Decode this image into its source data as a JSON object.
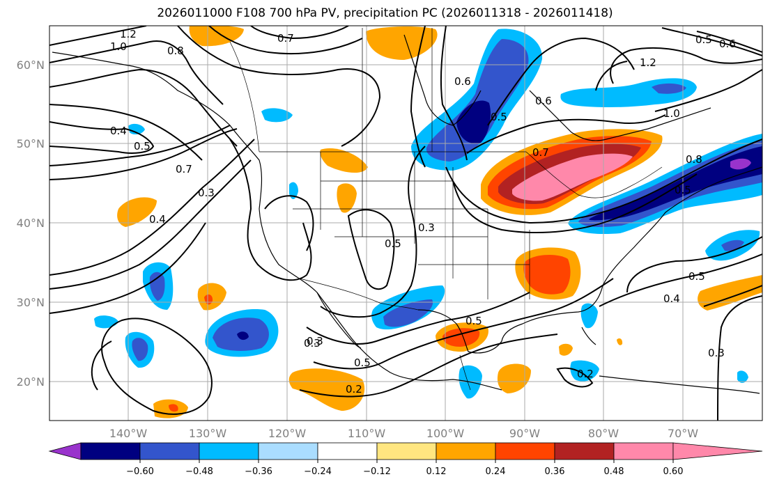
{
  "title": "2026011000 F108 700 hPa PV, precipitation PC (2026011318 - 2026011418)",
  "map": {
    "lat_labels": [
      "60°N",
      "50°N",
      "40°N",
      "30°N",
      "20°N"
    ],
    "lon_labels": [
      "140°W",
      "130°W",
      "120°W",
      "110°W",
      "100°W",
      "90°W",
      "80°W",
      "70°W"
    ],
    "contour_labels": [
      "1.2",
      "1.0",
      "0.8",
      "0.7",
      "0.4",
      "0.5",
      "0.7",
      "0.3",
      "0.4",
      "0.6",
      "0.5",
      "0.6",
      "0.7",
      "0.3",
      "0.5",
      "0.3",
      "1.2",
      "1.0",
      "0.6",
      "0.5",
      "0.8",
      "0.5",
      "0.5",
      "0.4",
      "0.3",
      "0.3",
      "0.5",
      "0.2",
      "0.2",
      "0.5"
    ]
  },
  "colorbar": {
    "ticks": [
      "−0.60",
      "−0.48",
      "−0.36",
      "−0.24",
      "−0.12",
      "0.12",
      "0.24",
      "0.36",
      "0.48",
      "0.60"
    ],
    "colors": [
      "#9933cc",
      "#000080",
      "#3355cc",
      "#00bbff",
      "#aaddff",
      "#ffffff",
      "#ffe680",
      "#ffa500",
      "#ff4400",
      "#b22222",
      "#ff88aa"
    ]
  }
}
